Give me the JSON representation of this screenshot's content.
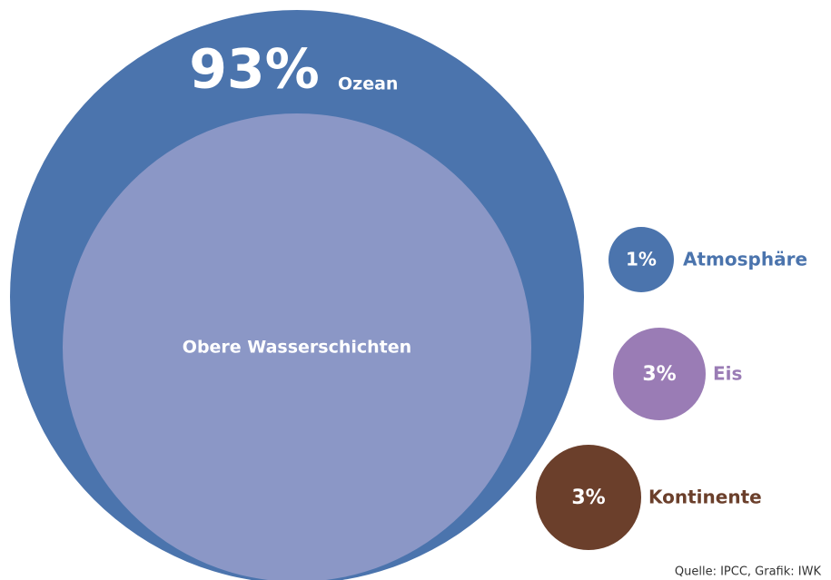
{
  "chart_data": {
    "type": "bubble",
    "categories": [
      "Ozean",
      "Atmosphäre",
      "Eis",
      "Kontinente"
    ],
    "values": [
      93,
      1,
      3,
      3
    ],
    "value_labels": [
      "93%",
      "1%",
      "3%",
      "3%"
    ],
    "colors": [
      "#4b74ad",
      "#4b74ad",
      "#9a7cb5",
      "#6b3f2b"
    ],
    "name_colors": [
      "#ffffff",
      "#4b74ad",
      "#9a7cb5",
      "#6b3f2b"
    ],
    "inner_label": "Obere Wasserschichten",
    "inner_color": "#8b97c6",
    "source": "Quelle: IPCC, Grafik: IWK"
  }
}
